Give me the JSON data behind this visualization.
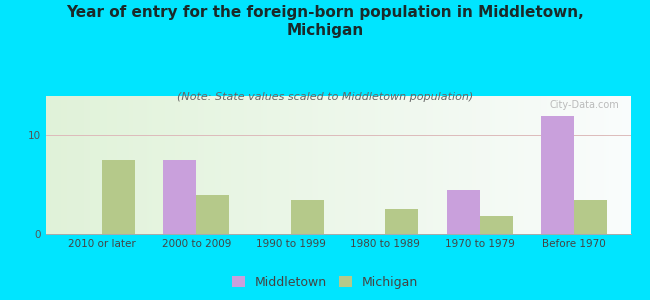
{
  "title": "Year of entry for the foreign-born population in Middletown,\nMichigan",
  "subtitle": "(Note: State values scaled to Middletown population)",
  "categories": [
    "2010 or later",
    "2000 to 2009",
    "1990 to 1999",
    "1980 to 1989",
    "1970 to 1979",
    "Before 1970"
  ],
  "middletown_values": [
    0,
    7.5,
    0,
    0,
    4.5,
    12.0
  ],
  "michigan_values": [
    7.5,
    4.0,
    3.5,
    2.5,
    1.8,
    3.5
  ],
  "middletown_color": "#c9a0dc",
  "michigan_color": "#b5c98a",
  "bar_width": 0.35,
  "ylim": [
    0,
    14
  ],
  "yticks": [
    0,
    10
  ],
  "outer_bg": "#00e5ff",
  "watermark": "City-Data.com",
  "title_fontsize": 11,
  "subtitle_fontsize": 8,
  "tick_fontsize": 7.5,
  "legend_fontsize": 9
}
